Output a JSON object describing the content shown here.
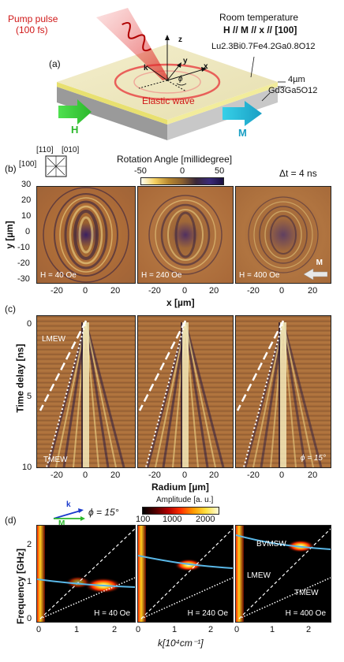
{
  "panel_a": {
    "label": "(a)",
    "pump_line1": "Pump pulse",
    "pump_line2": "(100 fs)",
    "room_temp": "Room temperature",
    "orientation": "H // M // x // [100]",
    "film_formula": "Lu2.3Bi0.7Fe4.2Ga0.8O12",
    "thickness": "4µm",
    "substrate": "Gd3Ga5O12",
    "elastic_wave": "Elastic wave",
    "h_arrow": "H",
    "m_arrow": "M",
    "axis_z": "z",
    "axis_y": "y",
    "axis_x": "x",
    "axis_k": "k",
    "axis_phi": "ϕ"
  },
  "panel_b": {
    "label": "(b)",
    "crystal_110": "[110]",
    "crystal_010": "[010]",
    "crystal_100": "[100]",
    "colorbar_title": "Rotation Angle [millidegree]",
    "colorbar_ticks": [
      "-50",
      "0",
      "50"
    ],
    "delta_t": "Δt = 4 ns",
    "y_axis_title": "y [µm]",
    "x_axis_title": "x [µm]",
    "y_ticks": [
      "30",
      "20",
      "10",
      "0",
      "-10",
      "-20",
      "-30"
    ],
    "x_ticks": [
      "-20",
      "0",
      "20"
    ],
    "fields": [
      "H = 40 Oe",
      "H = 240 Oe",
      "H = 400 Oe"
    ],
    "m_label": "M"
  },
  "panel_c": {
    "label": "(c)",
    "y_axis_title": "Time delay [ns]",
    "x_axis_title": "Radium [µm]",
    "y_ticks": [
      "0",
      "5",
      "10"
    ],
    "x_ticks": [
      "-20",
      "0",
      "20"
    ],
    "lmew": "LMEW",
    "tmew": "TMEW",
    "phi": "ϕ = 15°"
  },
  "panel_d": {
    "label": "(d)",
    "legend_k": "k",
    "legend_m": "M",
    "legend_phi": "ϕ = 15°",
    "colorbar_title": "Amplitude [a. u.]",
    "colorbar_ticks": [
      "100",
      "1000",
      "2000"
    ],
    "y_axis_title": "Frequency [GHz]",
    "x_axis_title": "k[10⁴cm⁻¹]",
    "y_ticks": [
      "2",
      "1",
      "0"
    ],
    "x_ticks": [
      "0",
      "1",
      "2"
    ],
    "fields": [
      "H = 40 Oe",
      "H = 240 Oe",
      "H = 400 Oe"
    ],
    "bvmsw": "BVMSW",
    "lmew": "LMEW",
    "tmew": "TMEW"
  }
}
